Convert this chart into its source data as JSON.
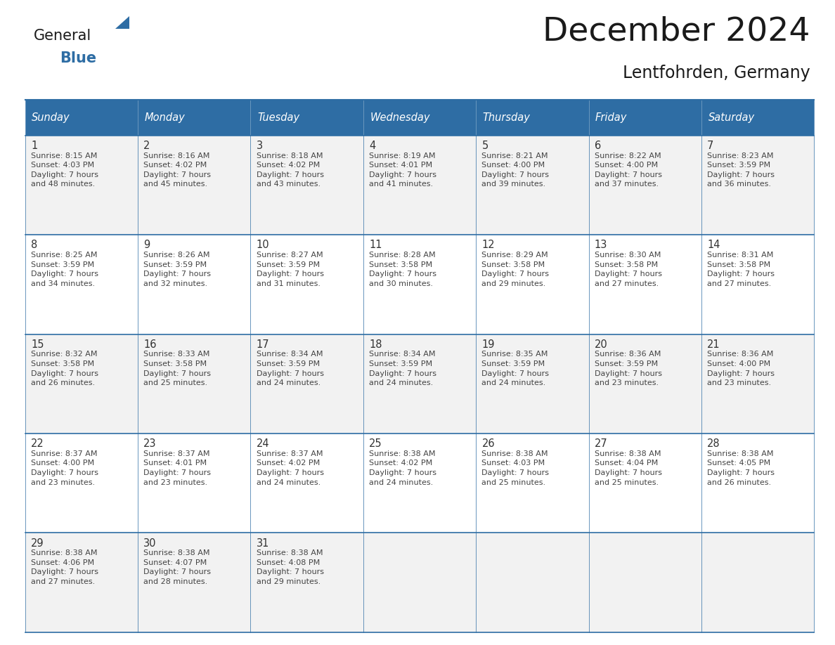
{
  "title": "December 2024",
  "subtitle": "Lentfohrden, Germany",
  "days_of_week": [
    "Sunday",
    "Monday",
    "Tuesday",
    "Wednesday",
    "Thursday",
    "Friday",
    "Saturday"
  ],
  "header_bg": "#2E6DA4",
  "header_text": "#FFFFFF",
  "cell_bg": "#F2F2F2",
  "cell_bg_alt": "#FFFFFF",
  "border_color": "#2E6DA4",
  "title_color": "#1a1a1a",
  "day_num_color": "#333333",
  "cell_text_color": "#444444",
  "logo_general_color": "#1a1a1a",
  "logo_blue_color": "#2E6DA4",
  "logo_triangle_color": "#2E6DA4",
  "calendar_data": [
    [
      {
        "day": 1,
        "sunrise": "8:15 AM",
        "sunset": "4:03 PM",
        "daylight": "7 hours and 48 minutes."
      },
      {
        "day": 2,
        "sunrise": "8:16 AM",
        "sunset": "4:02 PM",
        "daylight": "7 hours and 45 minutes."
      },
      {
        "day": 3,
        "sunrise": "8:18 AM",
        "sunset": "4:02 PM",
        "daylight": "7 hours and 43 minutes."
      },
      {
        "day": 4,
        "sunrise": "8:19 AM",
        "sunset": "4:01 PM",
        "daylight": "7 hours and 41 minutes."
      },
      {
        "day": 5,
        "sunrise": "8:21 AM",
        "sunset": "4:00 PM",
        "daylight": "7 hours and 39 minutes."
      },
      {
        "day": 6,
        "sunrise": "8:22 AM",
        "sunset": "4:00 PM",
        "daylight": "7 hours and 37 minutes."
      },
      {
        "day": 7,
        "sunrise": "8:23 AM",
        "sunset": "3:59 PM",
        "daylight": "7 hours and 36 minutes."
      }
    ],
    [
      {
        "day": 8,
        "sunrise": "8:25 AM",
        "sunset": "3:59 PM",
        "daylight": "7 hours and 34 minutes."
      },
      {
        "day": 9,
        "sunrise": "8:26 AM",
        "sunset": "3:59 PM",
        "daylight": "7 hours and 32 minutes."
      },
      {
        "day": 10,
        "sunrise": "8:27 AM",
        "sunset": "3:59 PM",
        "daylight": "7 hours and 31 minutes."
      },
      {
        "day": 11,
        "sunrise": "8:28 AM",
        "sunset": "3:58 PM",
        "daylight": "7 hours and 30 minutes."
      },
      {
        "day": 12,
        "sunrise": "8:29 AM",
        "sunset": "3:58 PM",
        "daylight": "7 hours and 29 minutes."
      },
      {
        "day": 13,
        "sunrise": "8:30 AM",
        "sunset": "3:58 PM",
        "daylight": "7 hours and 27 minutes."
      },
      {
        "day": 14,
        "sunrise": "8:31 AM",
        "sunset": "3:58 PM",
        "daylight": "7 hours and 27 minutes."
      }
    ],
    [
      {
        "day": 15,
        "sunrise": "8:32 AM",
        "sunset": "3:58 PM",
        "daylight": "7 hours and 26 minutes."
      },
      {
        "day": 16,
        "sunrise": "8:33 AM",
        "sunset": "3:58 PM",
        "daylight": "7 hours and 25 minutes."
      },
      {
        "day": 17,
        "sunrise": "8:34 AM",
        "sunset": "3:59 PM",
        "daylight": "7 hours and 24 minutes."
      },
      {
        "day": 18,
        "sunrise": "8:34 AM",
        "sunset": "3:59 PM",
        "daylight": "7 hours and 24 minutes."
      },
      {
        "day": 19,
        "sunrise": "8:35 AM",
        "sunset": "3:59 PM",
        "daylight": "7 hours and 24 minutes."
      },
      {
        "day": 20,
        "sunrise": "8:36 AM",
        "sunset": "3:59 PM",
        "daylight": "7 hours and 23 minutes."
      },
      {
        "day": 21,
        "sunrise": "8:36 AM",
        "sunset": "4:00 PM",
        "daylight": "7 hours and 23 minutes."
      }
    ],
    [
      {
        "day": 22,
        "sunrise": "8:37 AM",
        "sunset": "4:00 PM",
        "daylight": "7 hours and 23 minutes."
      },
      {
        "day": 23,
        "sunrise": "8:37 AM",
        "sunset": "4:01 PM",
        "daylight": "7 hours and 23 minutes."
      },
      {
        "day": 24,
        "sunrise": "8:37 AM",
        "sunset": "4:02 PM",
        "daylight": "7 hours and 24 minutes."
      },
      {
        "day": 25,
        "sunrise": "8:38 AM",
        "sunset": "4:02 PM",
        "daylight": "7 hours and 24 minutes."
      },
      {
        "day": 26,
        "sunrise": "8:38 AM",
        "sunset": "4:03 PM",
        "daylight": "7 hours and 25 minutes."
      },
      {
        "day": 27,
        "sunrise": "8:38 AM",
        "sunset": "4:04 PM",
        "daylight": "7 hours and 25 minutes."
      },
      {
        "day": 28,
        "sunrise": "8:38 AM",
        "sunset": "4:05 PM",
        "daylight": "7 hours and 26 minutes."
      }
    ],
    [
      {
        "day": 29,
        "sunrise": "8:38 AM",
        "sunset": "4:06 PM",
        "daylight": "7 hours and 27 minutes."
      },
      {
        "day": 30,
        "sunrise": "8:38 AM",
        "sunset": "4:07 PM",
        "daylight": "7 hours and 28 minutes."
      },
      {
        "day": 31,
        "sunrise": "8:38 AM",
        "sunset": "4:08 PM",
        "daylight": "7 hours and 29 minutes."
      },
      null,
      null,
      null,
      null
    ]
  ]
}
